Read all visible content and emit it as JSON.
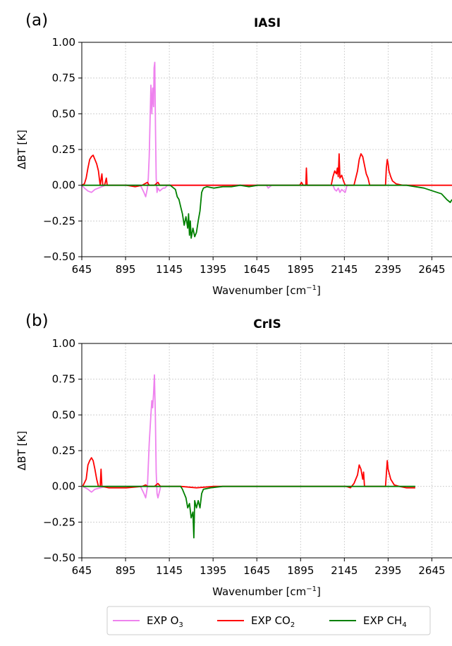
{
  "colors": {
    "o3": "#ee82ee",
    "co2": "#ff0000",
    "ch4": "#008000",
    "grid": "#c8c8c8"
  },
  "legend": [
    {
      "base": "EXP O",
      "sub": "3",
      "series": "o3"
    },
    {
      "base": "EXP CO",
      "sub": "2",
      "series": "co2"
    },
    {
      "base": "EXP CH",
      "sub": "4",
      "series": "ch4"
    }
  ],
  "chart_data": [
    {
      "type": "line",
      "panel_label": "(a)",
      "title": "IASI",
      "xlabel": "Wavenumber [cm",
      "xlabel_sup": "−1",
      "xlabel_end": "]",
      "ylabel": "ΔBT [K]",
      "xlim": [
        645,
        2760
      ],
      "ylim": [
        -0.5,
        1.0
      ],
      "xticks": [
        645,
        895,
        1145,
        1395,
        1645,
        1895,
        2145,
        2395,
        2645
      ],
      "yticks": [
        "1.00",
        "0.75",
        "0.50",
        "0.25",
        "0.00",
        "−0.25",
        "−0.50"
      ],
      "ytick_values": [
        1.0,
        0.75,
        0.5,
        0.25,
        0.0,
        -0.25,
        -0.5
      ],
      "grid": true,
      "series": [
        {
          "key": "o3",
          "name": "EXP O3",
          "points": [
            [
              645,
              0.0
            ],
            [
              660,
              -0.02
            ],
            [
              680,
              -0.04
            ],
            [
              700,
              -0.05
            ],
            [
              720,
              -0.03
            ],
            [
              740,
              -0.02
            ],
            [
              760,
              -0.01
            ],
            [
              780,
              0.0
            ],
            [
              980,
              0.0
            ],
            [
              1000,
              -0.05
            ],
            [
              1010,
              -0.08
            ],
            [
              1020,
              -0.02
            ],
            [
              1025,
              0.05
            ],
            [
              1030,
              0.2
            ],
            [
              1035,
              0.45
            ],
            [
              1040,
              0.7
            ],
            [
              1045,
              0.5
            ],
            [
              1050,
              0.68
            ],
            [
              1055,
              0.55
            ],
            [
              1058,
              0.82
            ],
            [
              1062,
              0.86
            ],
            [
              1066,
              0.4
            ],
            [
              1070,
              0.05
            ],
            [
              1075,
              -0.05
            ],
            [
              1080,
              -0.02
            ],
            [
              1090,
              -0.04
            ],
            [
              1100,
              -0.03
            ],
            [
              1110,
              -0.02
            ],
            [
              1120,
              -0.02
            ],
            [
              1135,
              0.0
            ],
            [
              1700,
              0.0
            ],
            [
              1710,
              -0.02
            ],
            [
              1720,
              -0.01
            ],
            [
              1730,
              0.0
            ],
            [
              2080,
              0.0
            ],
            [
              2090,
              -0.03
            ],
            [
              2100,
              -0.04
            ],
            [
              2110,
              -0.02
            ],
            [
              2120,
              -0.05
            ],
            [
              2130,
              -0.03
            ],
            [
              2140,
              -0.04
            ],
            [
              2150,
              -0.05
            ],
            [
              2160,
              0.0
            ]
          ]
        },
        {
          "key": "co2",
          "name": "EXP CO2",
          "points": [
            [
              645,
              0.0
            ],
            [
              660,
              0.01
            ],
            [
              670,
              0.05
            ],
            [
              680,
              0.12
            ],
            [
              690,
              0.18
            ],
            [
              700,
              0.2
            ],
            [
              710,
              0.21
            ],
            [
              720,
              0.18
            ],
            [
              730,
              0.15
            ],
            [
              740,
              0.1
            ],
            [
              745,
              0.05
            ],
            [
              750,
              0.0
            ],
            [
              760,
              0.08
            ],
            [
              765,
              0.0
            ],
            [
              775,
              0.0
            ],
            [
              785,
              0.05
            ],
            [
              790,
              0.0
            ],
            [
              900,
              0.0
            ],
            [
              950,
              -0.01
            ],
            [
              990,
              0.0
            ],
            [
              1020,
              0.02
            ],
            [
              1030,
              0.0
            ],
            [
              1060,
              0.0
            ],
            [
              1080,
              0.02
            ],
            [
              1090,
              0.0
            ],
            [
              1100,
              0.0
            ],
            [
              1890,
              0.0
            ],
            [
              1900,
              0.02
            ],
            [
              1910,
              0.0
            ],
            [
              1925,
              0.0
            ],
            [
              1928,
              0.12
            ],
            [
              1932,
              0.0
            ],
            [
              2070,
              0.0
            ],
            [
              2080,
              0.06
            ],
            [
              2090,
              0.1
            ],
            [
              2100,
              0.08
            ],
            [
              2105,
              0.12
            ],
            [
              2110,
              0.06
            ],
            [
              2115,
              0.22
            ],
            [
              2120,
              0.05
            ],
            [
              2130,
              0.07
            ],
            [
              2140,
              0.03
            ],
            [
              2150,
              0.0
            ],
            [
              2200,
              0.0
            ],
            [
              2210,
              0.05
            ],
            [
              2220,
              0.1
            ],
            [
              2230,
              0.18
            ],
            [
              2240,
              0.22
            ],
            [
              2250,
              0.2
            ],
            [
              2260,
              0.14
            ],
            [
              2270,
              0.08
            ],
            [
              2280,
              0.05
            ],
            [
              2290,
              0.0
            ],
            [
              2380,
              0.0
            ],
            [
              2385,
              0.12
            ],
            [
              2390,
              0.18
            ],
            [
              2395,
              0.15
            ],
            [
              2400,
              0.1
            ],
            [
              2410,
              0.06
            ],
            [
              2420,
              0.03
            ],
            [
              2440,
              0.01
            ],
            [
              2480,
              0.0
            ],
            [
              2760,
              0.0
            ]
          ]
        },
        {
          "key": "ch4",
          "name": "EXP CH4",
          "points": [
            [
              645,
              0.0
            ],
            [
              1150,
              0.0
            ],
            [
              1180,
              -0.03
            ],
            [
              1190,
              -0.08
            ],
            [
              1200,
              -0.1
            ],
            [
              1210,
              -0.15
            ],
            [
              1220,
              -0.2
            ],
            [
              1230,
              -0.28
            ],
            [
              1240,
              -0.22
            ],
            [
              1250,
              -0.3
            ],
            [
              1255,
              -0.2
            ],
            [
              1260,
              -0.35
            ],
            [
              1265,
              -0.25
            ],
            [
              1270,
              -0.37
            ],
            [
              1280,
              -0.3
            ],
            [
              1290,
              -0.36
            ],
            [
              1300,
              -0.33
            ],
            [
              1310,
              -0.25
            ],
            [
              1320,
              -0.18
            ],
            [
              1330,
              -0.05
            ],
            [
              1340,
              -0.02
            ],
            [
              1360,
              -0.01
            ],
            [
              1400,
              -0.02
            ],
            [
              1450,
              -0.01
            ],
            [
              1500,
              -0.01
            ],
            [
              1550,
              0.0
            ],
            [
              1600,
              -0.01
            ],
            [
              1650,
              0.0
            ],
            [
              2500,
              0.0
            ],
            [
              2550,
              -0.01
            ],
            [
              2600,
              -0.02
            ],
            [
              2650,
              -0.04
            ],
            [
              2700,
              -0.06
            ],
            [
              2730,
              -0.1
            ],
            [
              2750,
              -0.12
            ],
            [
              2760,
              -0.1
            ]
          ]
        }
      ]
    },
    {
      "type": "line",
      "panel_label": "(b)",
      "title": "CrIS",
      "xlabel": "Wavenumber [cm",
      "xlabel_sup": "−1",
      "xlabel_end": "]",
      "ylabel": "ΔBT [K]",
      "xlim": [
        645,
        2760
      ],
      "ylim": [
        -0.5,
        1.0
      ],
      "xticks": [
        645,
        895,
        1145,
        1395,
        1645,
        1895,
        2145,
        2395,
        2645
      ],
      "yticks": [
        "1.00",
        "0.75",
        "0.50",
        "0.25",
        "0.00",
        "−0.25",
        "−0.50"
      ],
      "ytick_values": [
        1.0,
        0.75,
        0.5,
        0.25,
        0.0,
        -0.25,
        -0.5
      ],
      "grid": true,
      "series": [
        {
          "key": "o3",
          "name": "EXP O3",
          "points": [
            [
              650,
              0.0
            ],
            [
              680,
              -0.02
            ],
            [
              700,
              -0.04
            ],
            [
              720,
              -0.02
            ],
            [
              750,
              -0.01
            ],
            [
              780,
              0.0
            ],
            [
              980,
              0.0
            ],
            [
              1000,
              -0.05
            ],
            [
              1010,
              -0.08
            ],
            [
              1020,
              0.0
            ],
            [
              1030,
              0.3
            ],
            [
              1040,
              0.5
            ],
            [
              1045,
              0.6
            ],
            [
              1050,
              0.55
            ],
            [
              1055,
              0.65
            ],
            [
              1060,
              0.78
            ],
            [
              1065,
              0.5
            ],
            [
              1070,
              0.1
            ],
            [
              1075,
              -0.05
            ],
            [
              1080,
              -0.08
            ],
            [
              1090,
              -0.03
            ],
            [
              1095,
              0.0
            ]
          ]
        },
        {
          "key": "co2",
          "name": "EXP CO2",
          "points": [
            [
              650,
              0.0
            ],
            [
              670,
              0.05
            ],
            [
              680,
              0.15
            ],
            [
              690,
              0.18
            ],
            [
              700,
              0.2
            ],
            [
              710,
              0.18
            ],
            [
              720,
              0.12
            ],
            [
              730,
              0.05
            ],
            [
              740,
              0.0
            ],
            [
              750,
              0.0
            ],
            [
              755,
              0.12
            ],
            [
              760,
              0.0
            ],
            [
              800,
              -0.01
            ],
            [
              900,
              -0.01
            ],
            [
              990,
              0.0
            ],
            [
              1010,
              0.01
            ],
            [
              1020,
              0.0
            ],
            [
              1060,
              0.0
            ],
            [
              1080,
              0.02
            ],
            [
              1095,
              0.0
            ],
            [
              1210,
              0.0
            ],
            [
              1300,
              -0.01
            ],
            [
              1400,
              0.0
            ],
            [
              1750,
              0.0
            ],
            [
              2155,
              0.0
            ],
            [
              2180,
              -0.01
            ],
            [
              2200,
              0.02
            ],
            [
              2210,
              0.05
            ],
            [
              2220,
              0.08
            ],
            [
              2230,
              0.15
            ],
            [
              2240,
              0.12
            ],
            [
              2250,
              0.05
            ],
            [
              2255,
              0.1
            ],
            [
              2260,
              0.0
            ],
            [
              2380,
              0.0
            ],
            [
              2390,
              0.18
            ],
            [
              2395,
              0.12
            ],
            [
              2410,
              0.05
            ],
            [
              2430,
              0.01
            ],
            [
              2460,
              0.0
            ],
            [
              2500,
              -0.01
            ],
            [
              2550,
              -0.01
            ]
          ]
        },
        {
          "key": "ch4",
          "name": "EXP CH4",
          "points": [
            [
              650,
              0.0
            ],
            [
              1095,
              0.0
            ],
            [
              1210,
              0.0
            ],
            [
              1220,
              -0.02
            ],
            [
              1230,
              -0.05
            ],
            [
              1240,
              -0.08
            ],
            [
              1250,
              -0.15
            ],
            [
              1260,
              -0.12
            ],
            [
              1270,
              -0.22
            ],
            [
              1280,
              -0.18
            ],
            [
              1285,
              -0.36
            ],
            [
              1290,
              -0.1
            ],
            [
              1300,
              -0.15
            ],
            [
              1310,
              -0.1
            ],
            [
              1320,
              -0.15
            ],
            [
              1330,
              -0.05
            ],
            [
              1340,
              -0.02
            ],
            [
              1380,
              -0.01
            ],
            [
              1450,
              0.0
            ],
            [
              1550,
              0.0
            ],
            [
              1650,
              0.0
            ],
            [
              1750,
              0.0
            ],
            [
              2155,
              0.0
            ],
            [
              2300,
              0.0
            ],
            [
              2550,
              0.0
            ]
          ]
        }
      ]
    }
  ]
}
